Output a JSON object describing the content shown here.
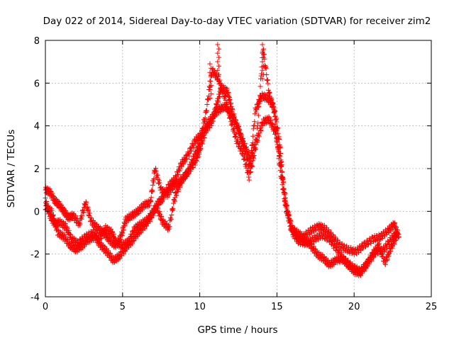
{
  "chart_data": {
    "type": "scatter",
    "title": "Day 022 of 2014, Sidereal Day-to-day VTEC variation (SDTVAR) for receiver zim2",
    "xlabel": "GPS time / hours",
    "ylabel": "SDTVAR / TECUs",
    "xlim": [
      0,
      25
    ],
    "ylim": [
      -4,
      8
    ],
    "xticks": [
      0,
      5,
      10,
      15,
      20,
      25
    ],
    "yticks": [
      -4,
      -2,
      0,
      2,
      4,
      6,
      8
    ],
    "grid": true,
    "marker": "+",
    "series": [
      {
        "name": "SDTVAR",
        "color": "#ff0000",
        "tracks": [
          [
            [
              0,
              1.0
            ],
            [
              0.3,
              0.9
            ],
            [
              0.6,
              0.5
            ],
            [
              0.9,
              0.3
            ],
            [
              1.2,
              0.0
            ],
            [
              1.5,
              -0.3
            ],
            [
              1.8,
              -0.2
            ],
            [
              2.2,
              -0.6
            ],
            [
              2.6,
              0.4
            ],
            [
              3.0,
              -0.5
            ],
            [
              3.4,
              -0.8
            ],
            [
              3.8,
              -1.0
            ],
            [
              4.1,
              -1.3
            ],
            [
              4.5,
              -1.6
            ],
            [
              4.9,
              -1.2
            ],
            [
              5.2,
              -0.4
            ],
            [
              5.6,
              -0.2
            ],
            [
              6.0,
              0.0
            ],
            [
              6.4,
              0.3
            ],
            [
              6.8,
              0.4
            ],
            [
              7.1,
              2.0
            ],
            [
              7.5,
              1.0
            ],
            [
              7.9,
              0.8
            ],
            [
              8.3,
              1.2
            ],
            [
              8.7,
              1.4
            ],
            [
              9.2,
              1.8
            ],
            [
              9.7,
              2.3
            ],
            [
              10.0,
              2.9
            ],
            [
              10.4,
              3.8
            ],
            [
              10.8,
              4.2
            ],
            [
              11.1,
              5.0
            ],
            [
              11.4,
              5.8
            ],
            [
              11.8,
              5.6
            ],
            [
              12.1,
              4.7
            ],
            [
              12.5,
              3.8
            ],
            [
              12.9,
              3.1
            ],
            [
              13.3,
              2.4
            ],
            [
              13.7,
              3.5
            ],
            [
              14.1,
              7.6
            ],
            [
              14.5,
              5.5
            ],
            [
              14.9,
              4.5
            ],
            [
              15.2,
              3.0
            ],
            [
              15.5,
              0.5
            ],
            [
              15.9,
              -0.8
            ],
            [
              16.3,
              -1.0
            ],
            [
              16.7,
              -1.2
            ],
            [
              17.2,
              -0.9
            ],
            [
              17.7,
              -0.7
            ],
            [
              18.1,
              -0.8
            ],
            [
              18.6,
              -1.2
            ],
            [
              19.1,
              -1.6
            ],
            [
              19.6,
              -1.8
            ],
            [
              20.1,
              -1.9
            ],
            [
              20.6,
              -1.6
            ],
            [
              21.2,
              -1.3
            ],
            [
              21.7,
              -1.2
            ],
            [
              22.2,
              -0.9
            ],
            [
              22.6,
              -0.6
            ],
            [
              22.9,
              -1.2
            ]
          ],
          [
            [
              0,
              0.5
            ],
            [
              0.3,
              -0.2
            ],
            [
              0.6,
              -0.6
            ],
            [
              0.9,
              -0.5
            ],
            [
              1.3,
              -0.7
            ],
            [
              1.7,
              -1.3
            ],
            [
              2.1,
              -1.5
            ],
            [
              2.6,
              -1.2
            ],
            [
              3.1,
              -1.0
            ],
            [
              3.5,
              -1.3
            ],
            [
              3.9,
              -0.8
            ],
            [
              4.3,
              -1.0
            ],
            [
              4.6,
              -1.5
            ],
            [
              5.0,
              -1.6
            ],
            [
              5.4,
              -1.4
            ],
            [
              5.8,
              -0.8
            ],
            [
              6.2,
              -0.6
            ],
            [
              6.6,
              -0.4
            ],
            [
              7.0,
              0.0
            ],
            [
              7.3,
              0.4
            ],
            [
              7.6,
              0.6
            ],
            [
              8.0,
              1.2
            ],
            [
              8.4,
              1.5
            ],
            [
              8.8,
              2.2
            ],
            [
              9.2,
              2.6
            ],
            [
              9.7,
              3.3
            ],
            [
              10.1,
              3.6
            ],
            [
              10.5,
              4.1
            ],
            [
              10.9,
              4.5
            ],
            [
              11.3,
              4.8
            ],
            [
              11.7,
              4.9
            ],
            [
              12.1,
              4.4
            ],
            [
              12.5,
              3.9
            ],
            [
              12.9,
              2.9
            ],
            [
              13.3,
              1.9
            ],
            [
              13.7,
              3.3
            ],
            [
              14.1,
              4.2
            ],
            [
              14.5,
              4.3
            ],
            [
              14.9,
              3.7
            ],
            [
              15.2,
              2.5
            ],
            [
              15.6,
              0.3
            ],
            [
              16.0,
              -1.0
            ],
            [
              16.4,
              -1.4
            ],
            [
              16.9,
              -1.5
            ],
            [
              17.4,
              -1.3
            ],
            [
              17.9,
              -1.1
            ],
            [
              18.4,
              -1.3
            ],
            [
              18.9,
              -1.8
            ],
            [
              19.4,
              -2.3
            ],
            [
              19.9,
              -2.6
            ],
            [
              20.4,
              -2.8
            ],
            [
              20.9,
              -2.4
            ],
            [
              21.4,
              -1.9
            ],
            [
              21.9,
              -1.8
            ],
            [
              22.4,
              -1.3
            ],
            [
              22.8,
              -1.0
            ]
          ],
          [
            [
              0,
              0.2
            ],
            [
              0.4,
              0.0
            ],
            [
              0.8,
              -1.0
            ],
            [
              1.2,
              -1.2
            ],
            [
              1.6,
              -1.6
            ],
            [
              2.0,
              -1.8
            ],
            [
              2.4,
              -1.6
            ],
            [
              2.8,
              -1.3
            ],
            [
              3.2,
              -1.2
            ],
            [
              3.6,
              -1.6
            ],
            [
              4.0,
              -1.9
            ],
            [
              4.4,
              -2.3
            ],
            [
              4.8,
              -2.1
            ],
            [
              5.2,
              -1.7
            ],
            [
              5.6,
              -1.4
            ],
            [
              6.0,
              -1.0
            ],
            [
              6.4,
              -0.7
            ],
            [
              6.8,
              -0.3
            ],
            [
              7.2,
              0.2
            ],
            [
              7.6,
              -0.5
            ],
            [
              8.0,
              -0.8
            ],
            [
              8.4,
              0.7
            ],
            [
              8.8,
              1.4
            ],
            [
              9.2,
              1.8
            ],
            [
              9.6,
              2.5
            ],
            [
              10.0,
              3.2
            ],
            [
              10.4,
              4.6
            ],
            [
              10.8,
              6.6
            ],
            [
              11.2,
              6.2
            ],
            [
              11.6,
              5.4
            ],
            [
              12.0,
              4.3
            ],
            [
              12.4,
              3.3
            ],
            [
              12.8,
              2.7
            ],
            [
              13.2,
              1.6
            ],
            [
              13.6,
              4.7
            ],
            [
              14.0,
              5.4
            ],
            [
              14.4,
              5.3
            ],
            [
              14.8,
              4.9
            ],
            [
              15.2,
              2.0
            ],
            [
              15.6,
              0.1
            ],
            [
              16.0,
              -0.8
            ],
            [
              16.4,
              -1.3
            ],
            [
              16.8,
              -1.3
            ],
            [
              17.2,
              -1.6
            ],
            [
              17.6,
              -2.0
            ],
            [
              18.0,
              -2.2
            ],
            [
              18.4,
              -2.5
            ],
            [
              18.8,
              -2.3
            ],
            [
              19.2,
              -2.2
            ],
            [
              19.6,
              -2.5
            ],
            [
              20.0,
              -2.8
            ],
            [
              20.4,
              -2.9
            ],
            [
              20.8,
              -2.5
            ],
            [
              21.2,
              -2.0
            ],
            [
              21.6,
              -1.6
            ],
            [
              22.0,
              -2.4
            ],
            [
              22.4,
              -1.7
            ],
            [
              22.8,
              -1.1
            ]
          ]
        ],
        "spikes": [
          [
            11.2,
            7.8
          ],
          [
            10.7,
            6.9
          ],
          [
            14.1,
            7.8
          ]
        ]
      }
    ]
  }
}
